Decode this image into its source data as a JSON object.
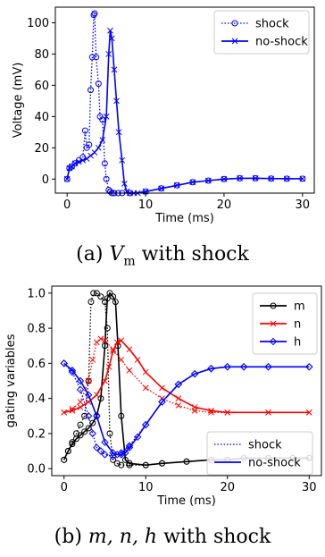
{
  "captions": {
    "a": {
      "tag": "(a)",
      "math": "V",
      "sub": "m",
      "rest": "with shock"
    },
    "b": {
      "tag": "(b)",
      "math": "m, n, h",
      "rest": "with shock"
    }
  },
  "colors": {
    "blue": "#0000ff",
    "red": "#ff0000",
    "black": "#000000"
  },
  "chart_data": [
    {
      "type": "line",
      "title": "",
      "xlabel": "Time (ms)",
      "ylabel": "Voltage (mV)",
      "xlim": [
        -1.5,
        31.5
      ],
      "ylim": [
        -9,
        110
      ],
      "xticks": [
        0,
        10,
        20,
        30
      ],
      "yticks": [
        0,
        20,
        40,
        60,
        80,
        100
      ],
      "grid": false,
      "legend": "top-right",
      "series": [
        {
          "name": "shock",
          "style": "dotted",
          "marker": "circle",
          "color": "#0000ff",
          "x": [
            0,
            0.3,
            0.6,
            1.0,
            1.5,
            2.0,
            2.3,
            2.5,
            2.8,
            3.0,
            3.2,
            3.4,
            3.5,
            3.7,
            4.0,
            4.2,
            4.5,
            4.8,
            5.0,
            5.3,
            5.5,
            5.7,
            6.0,
            6.5,
            7.0,
            8.0,
            10,
            12,
            14,
            16,
            18,
            20,
            22,
            24,
            26,
            28,
            30
          ],
          "y": [
            0,
            7,
            8,
            10,
            12,
            14,
            31,
            20,
            22,
            57,
            78,
            105,
            106,
            78,
            61,
            40,
            38,
            10,
            0,
            -7,
            -8,
            -9,
            -9,
            -9,
            -9,
            -9,
            -8,
            -6,
            -4,
            -2,
            -1,
            0,
            0.5,
            0.5,
            0.3,
            0.2,
            0.2
          ]
        },
        {
          "name": "no-shock",
          "style": "solid",
          "marker": "x",
          "color": "#0000ff",
          "x": [
            0,
            0.3,
            0.6,
            1.0,
            1.5,
            2.0,
            2.5,
            3.0,
            3.5,
            4.0,
            4.5,
            5.0,
            5.3,
            5.5,
            5.7,
            6.0,
            6.3,
            6.6,
            7.0,
            7.3,
            7.6,
            8.0,
            8.5,
            9.0,
            10,
            12,
            14,
            16,
            18,
            20,
            22,
            24,
            26,
            28,
            30
          ],
          "y": [
            0,
            7,
            8,
            10,
            11,
            12,
            13,
            15,
            17,
            20,
            25,
            40,
            80,
            95,
            90,
            70,
            50,
            30,
            12,
            -3,
            -8,
            -9,
            -9,
            -9,
            -8,
            -6,
            -4,
            -2,
            -1,
            0,
            0.5,
            0.5,
            0.3,
            0.2,
            0.2
          ]
        }
      ]
    },
    {
      "type": "line",
      "title": "",
      "xlabel": "Time (ms)",
      "ylabel": "gating variables",
      "xlim": [
        -1.5,
        31.5
      ],
      "ylim": [
        -0.04,
        1.04
      ],
      "xticks": [
        0,
        10,
        20,
        30
      ],
      "yticks": [
        0.0,
        0.2,
        0.4,
        0.6,
        0.8,
        1.0
      ],
      "grid": false,
      "legends": [
        {
          "placement": "top-right",
          "entries": [
            {
              "name": "m",
              "color": "#000000",
              "marker": "circle"
            },
            {
              "name": "n",
              "color": "#ff0000",
              "marker": "x"
            },
            {
              "name": "h",
              "color": "#0000ff",
              "marker": "diamond"
            }
          ]
        },
        {
          "placement": "lower-right",
          "entries": [
            {
              "name": "shock",
              "color": "#0000ff",
              "style": "dotted"
            },
            {
              "name": "no-shock",
              "color": "#0000ff",
              "style": "solid"
            }
          ]
        }
      ],
      "series": [
        {
          "var": "m",
          "run": "shock",
          "color": "#000000",
          "style": "dotted",
          "marker": "circle",
          "x": [
            0,
            0.5,
            1,
            1.5,
            2,
            2.5,
            3,
            3.3,
            3.6,
            4,
            4.5,
            5,
            5.3,
            5.6,
            6,
            6.5,
            7,
            8,
            10,
            12,
            15,
            18,
            20,
            22,
            25,
            28,
            30
          ],
          "y": [
            0.05,
            0.1,
            0.15,
            0.2,
            0.25,
            0.3,
            0.5,
            0.95,
            1.0,
            1.0,
            0.98,
            0.95,
            0.8,
            0.2,
            0.05,
            0.03,
            0.02,
            0.02,
            0.02,
            0.03,
            0.04,
            0.05,
            0.05,
            0.06,
            0.06,
            0.06,
            0.06
          ]
        },
        {
          "var": "m",
          "run": "no-shock",
          "color": "#000000",
          "style": "solid",
          "marker": "circle",
          "x": [
            0,
            0.5,
            1,
            1.5,
            2,
            2.5,
            3,
            3.5,
            4,
            4.5,
            5,
            5.3,
            5.6,
            6,
            6.3,
            6.6,
            7,
            7.5,
            8,
            10,
            12,
            15,
            18,
            20,
            22,
            25,
            28,
            30
          ],
          "y": [
            0.05,
            0.1,
            0.14,
            0.17,
            0.19,
            0.21,
            0.23,
            0.26,
            0.3,
            0.4,
            0.7,
            0.97,
            1.0,
            0.98,
            0.95,
            0.7,
            0.3,
            0.05,
            0.03,
            0.02,
            0.03,
            0.04,
            0.05,
            0.05,
            0.06,
            0.06,
            0.06,
            0.06
          ]
        },
        {
          "var": "n",
          "run": "shock",
          "color": "#ff0000",
          "style": "dotted",
          "marker": "x",
          "x": [
            0,
            1,
            2,
            3,
            3.5,
            4,
            4.5,
            5,
            6,
            7,
            8,
            10,
            12,
            14,
            16,
            18,
            20,
            25,
            30
          ],
          "y": [
            0.32,
            0.34,
            0.38,
            0.5,
            0.62,
            0.72,
            0.74,
            0.73,
            0.68,
            0.62,
            0.56,
            0.46,
            0.4,
            0.36,
            0.33,
            0.32,
            0.32,
            0.32,
            0.32
          ]
        },
        {
          "var": "n",
          "run": "no-shock",
          "color": "#ff0000",
          "style": "solid",
          "marker": "x",
          "x": [
            0,
            1,
            2,
            3,
            4,
            5,
            5.5,
            6,
            6.5,
            7,
            8,
            9,
            10,
            12,
            14,
            16,
            18,
            20,
            25,
            30
          ],
          "y": [
            0.32,
            0.33,
            0.35,
            0.38,
            0.42,
            0.5,
            0.58,
            0.67,
            0.72,
            0.73,
            0.68,
            0.62,
            0.55,
            0.46,
            0.4,
            0.35,
            0.33,
            0.32,
            0.32,
            0.32
          ]
        },
        {
          "var": "h",
          "run": "shock",
          "color": "#0000ff",
          "style": "dotted",
          "marker": "diamond",
          "x": [
            0,
            1,
            2,
            3,
            3.5,
            4,
            4.5,
            5,
            6,
            7,
            8,
            10,
            12,
            14,
            16,
            18,
            20,
            22,
            25,
            30
          ],
          "y": [
            0.6,
            0.55,
            0.45,
            0.3,
            0.2,
            0.12,
            0.1,
            0.08,
            0.07,
            0.09,
            0.13,
            0.25,
            0.38,
            0.48,
            0.54,
            0.57,
            0.58,
            0.58,
            0.58,
            0.58
          ]
        },
        {
          "var": "h",
          "run": "no-shock",
          "color": "#0000ff",
          "style": "solid",
          "marker": "diamond",
          "x": [
            0,
            1,
            2,
            3,
            4,
            5,
            6,
            6.5,
            7,
            7.5,
            8,
            9,
            10,
            12,
            14,
            16,
            18,
            20,
            22,
            25,
            30
          ],
          "y": [
            0.6,
            0.56,
            0.5,
            0.42,
            0.3,
            0.15,
            0.09,
            0.08,
            0.08,
            0.09,
            0.12,
            0.18,
            0.25,
            0.38,
            0.48,
            0.54,
            0.57,
            0.58,
            0.58,
            0.58,
            0.58
          ]
        }
      ]
    }
  ]
}
